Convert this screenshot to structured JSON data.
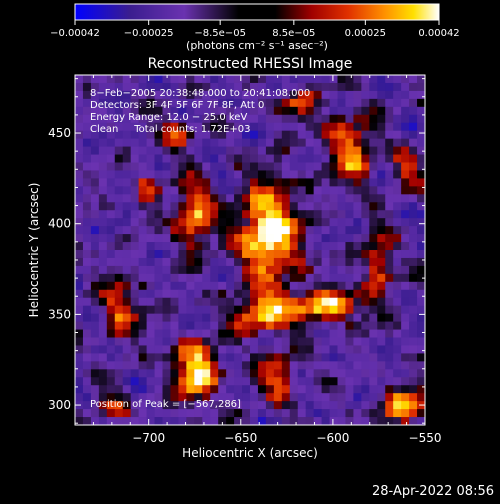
{
  "chart_data": {
    "type": "heatmap",
    "title": "Reconstructed RHESSI Image",
    "xlabel": "Heliocentric X (arcsec)",
    "ylabel": "Heliocentric Y (arcsec)",
    "xlim": [
      -740,
      -550
    ],
    "ylim": [
      289,
      482
    ],
    "x_ticks": [
      -700,
      -650,
      -600,
      -550
    ],
    "x_tick_labels": [
      "−700",
      "−650",
      "−600",
      "−550"
    ],
    "y_ticks": [
      300,
      350,
      400,
      450
    ],
    "y_tick_labels": [
      "300",
      "350",
      "400",
      "450"
    ],
    "colorbar": {
      "range": [
        -0.00042,
        0.00042
      ],
      "ticks": [
        -0.00042,
        -0.00025,
        -8.5e-05,
        8.5e-05,
        0.00025,
        0.00042
      ],
      "tick_labels": [
        "−0.00042",
        "−0.00025",
        "−8.5e−05",
        "8.5e−05",
        "0.00025",
        "0.00042"
      ],
      "units": "(photons cm⁻² s⁻¹ asec⁻²)",
      "colormap": [
        "#0000ff",
        "#3a1d8f",
        "#6a32b0",
        "#000000",
        "#a00000",
        "#e03000",
        "#ff9000",
        "#ffe000",
        "#ffffff"
      ]
    },
    "annotations": [
      "8−Feb−2005 20:38:48.000 to 20:41:08.000",
      "Detectors: 3F 4F 5F 6F 7F 8F, Att 0",
      "Energy Range: 12.0 − 25.0 keV",
      "Clean     Total counts: 1.72E+03"
    ],
    "peak_label": "Position of Peak = [−567,286]",
    "blobs": [
      {
        "x": -635,
        "y": 395,
        "sx": 12,
        "sy": 20,
        "amp": 1.0
      },
      {
        "x": -675,
        "y": 405,
        "sx": 7,
        "sy": 14,
        "amp": 0.8
      },
      {
        "x": -675,
        "y": 318,
        "sx": 9,
        "sy": 12,
        "amp": 0.95
      },
      {
        "x": -605,
        "y": 355,
        "sx": 18,
        "sy": 7,
        "amp": 0.75
      },
      {
        "x": -640,
        "y": 350,
        "sx": 10,
        "sy": 8,
        "amp": 0.7
      },
      {
        "x": -590,
        "y": 440,
        "sx": 9,
        "sy": 14,
        "amp": 0.7
      },
      {
        "x": -575,
        "y": 380,
        "sx": 6,
        "sy": 12,
        "amp": 0.6
      },
      {
        "x": -715,
        "y": 355,
        "sx": 8,
        "sy": 12,
        "amp": 0.6
      },
      {
        "x": -620,
        "y": 465,
        "sx": 9,
        "sy": 6,
        "amp": 0.55
      },
      {
        "x": -685,
        "y": 450,
        "sx": 8,
        "sy": 6,
        "amp": 0.5
      },
      {
        "x": -560,
        "y": 300,
        "sx": 10,
        "sy": 8,
        "amp": 0.7
      },
      {
        "x": -630,
        "y": 315,
        "sx": 8,
        "sy": 10,
        "amp": 0.6
      },
      {
        "x": -720,
        "y": 300,
        "sx": 7,
        "sy": 6,
        "amp": 0.45
      },
      {
        "x": -700,
        "y": 420,
        "sx": 5,
        "sy": 8,
        "amp": 0.45
      },
      {
        "x": -560,
        "y": 430,
        "sx": 6,
        "sy": 9,
        "amp": 0.5
      }
    ]
  },
  "footer": {
    "timestamp": "28-Apr-2022 08:56"
  }
}
